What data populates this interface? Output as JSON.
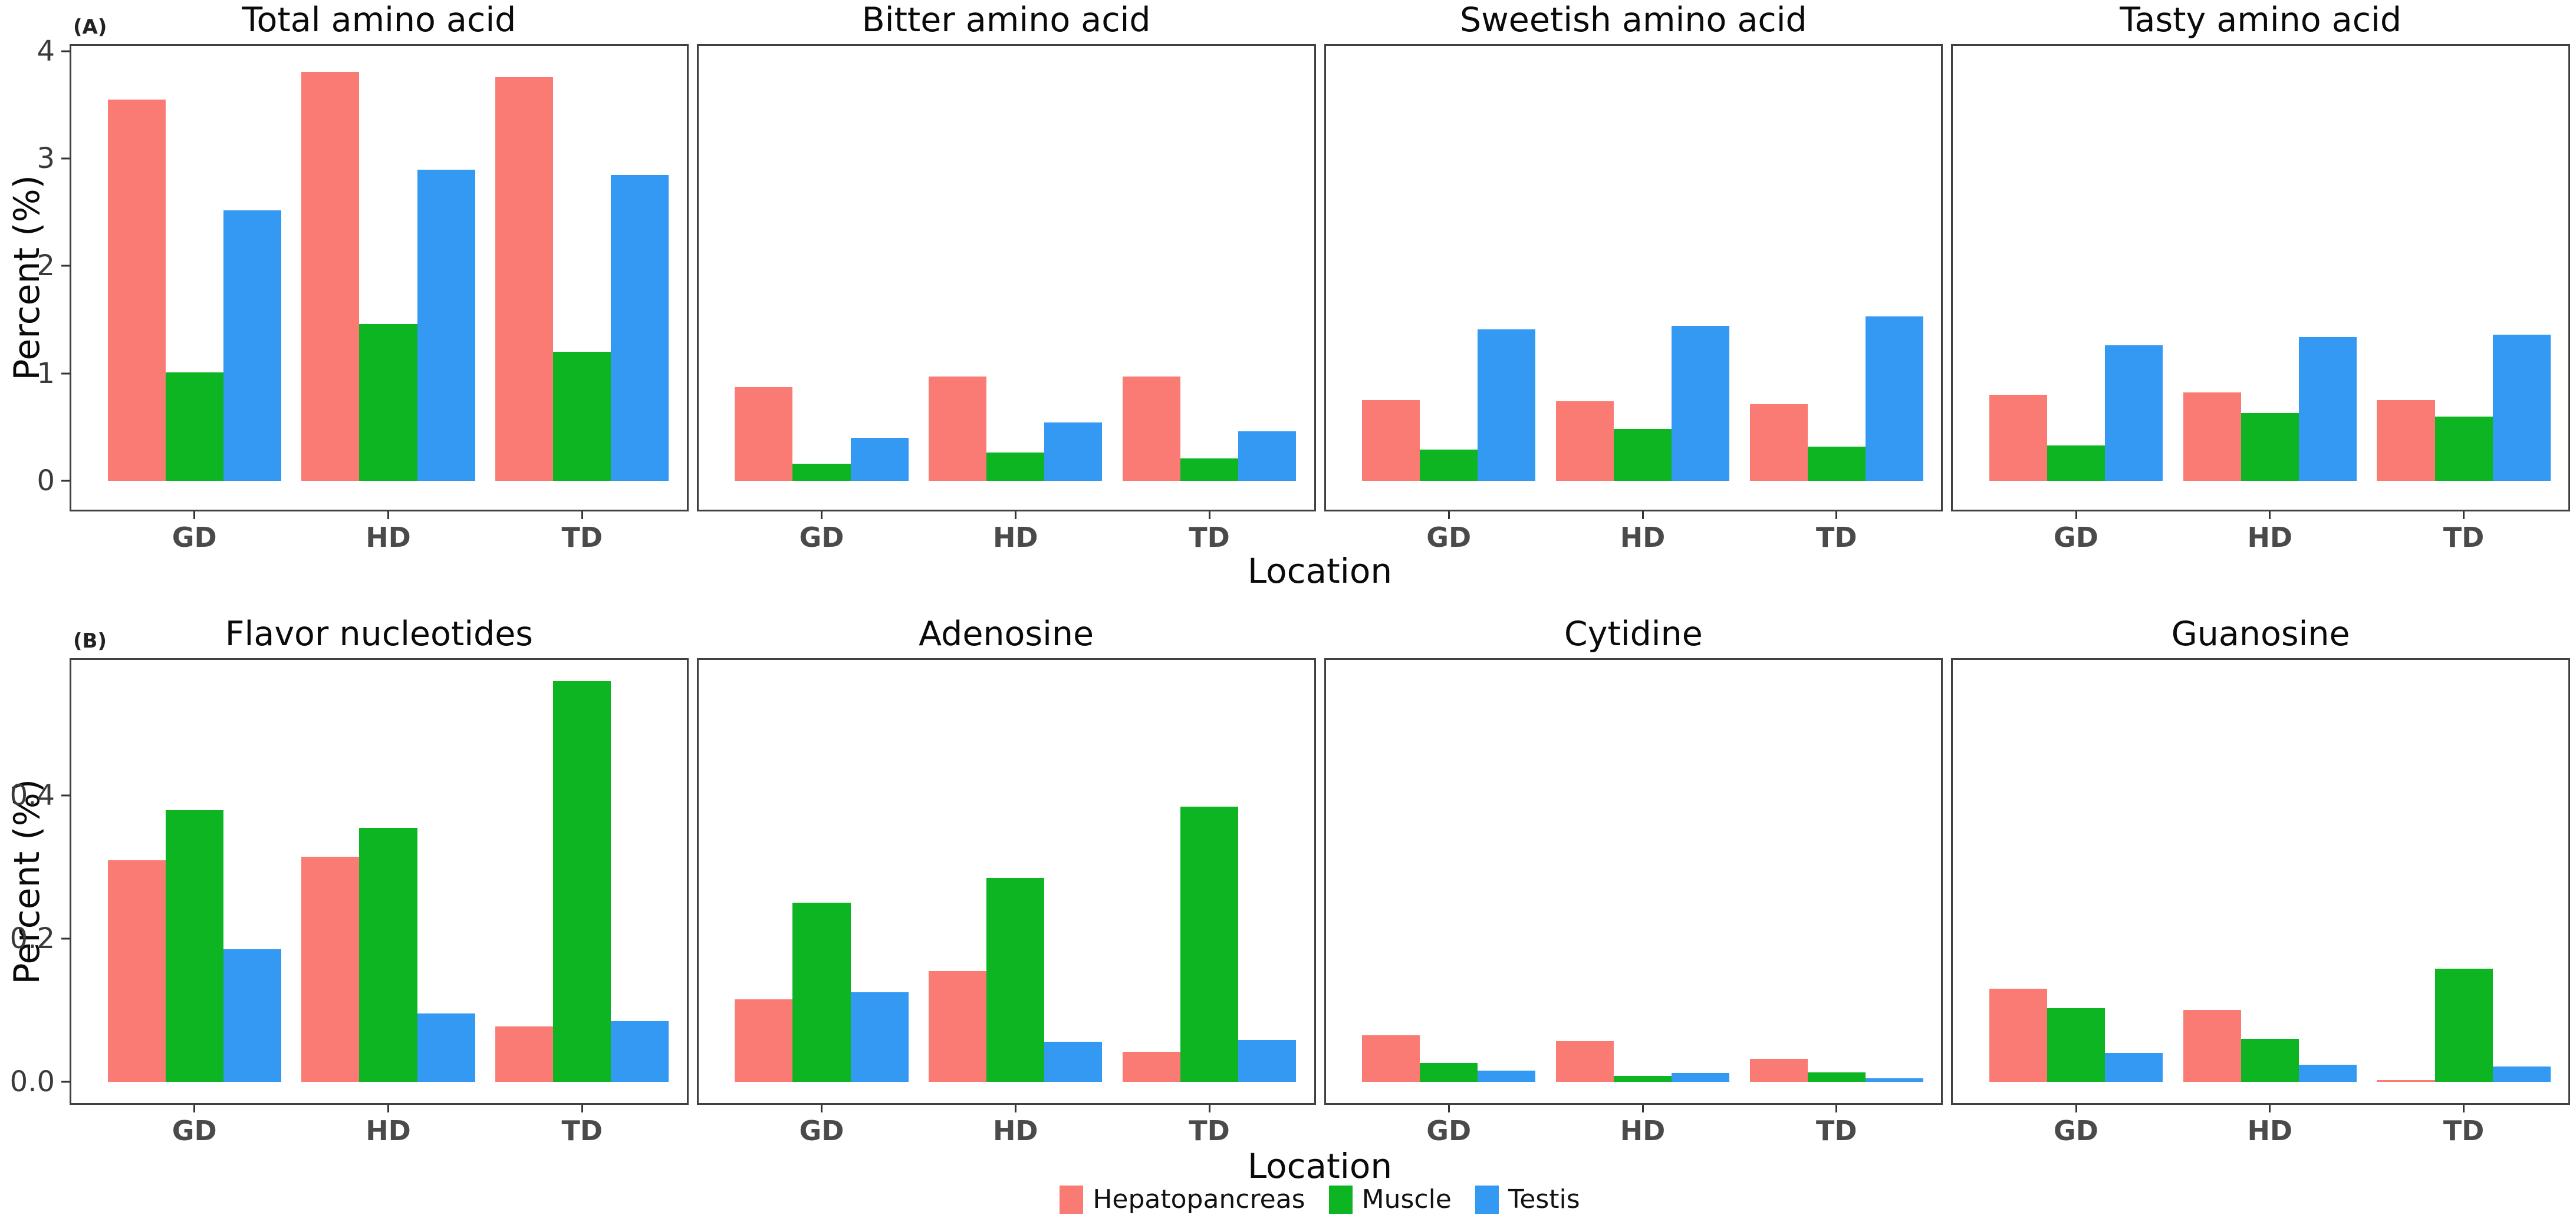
{
  "figure": {
    "panel_a_label": "(A)",
    "panel_b_label": "(B)",
    "ylabel": "Percent (%)",
    "xlabel": "Location",
    "categories": [
      "GD",
      "HD",
      "TD"
    ],
    "legend": [
      {
        "label": "Hepatopancreas",
        "color": "#FA7B73"
      },
      {
        "label": "Muscle",
        "color": "#0DB523"
      },
      {
        "label": "Testis",
        "color": "#3399F3"
      }
    ],
    "frame_color": "#404040"
  },
  "chart_data": [
    {
      "type": "bar",
      "row": "A",
      "title": "Total amino acid",
      "categories": [
        "GD",
        "HD",
        "TD"
      ],
      "series": [
        {
          "name": "Hepatopancreas",
          "values": [
            3.55,
            3.81,
            3.76
          ]
        },
        {
          "name": "Muscle",
          "values": [
            1.01,
            1.46,
            1.2
          ]
        },
        {
          "name": "Testis",
          "values": [
            2.52,
            2.9,
            2.85
          ]
        }
      ],
      "ylim": [
        -0.27,
        4.05
      ],
      "yticks": [
        0,
        1,
        2,
        3,
        4
      ],
      "ytick_labels": [
        "0",
        "1",
        "2",
        "3",
        "4"
      ],
      "show_y_axis": true,
      "grid": false
    },
    {
      "type": "bar",
      "row": "A",
      "title": "Bitter amino acid",
      "categories": [
        "GD",
        "HD",
        "TD"
      ],
      "series": [
        {
          "name": "Hepatopancreas",
          "values": [
            0.87,
            0.97,
            0.97
          ]
        },
        {
          "name": "Muscle",
          "values": [
            0.16,
            0.26,
            0.21
          ]
        },
        {
          "name": "Testis",
          "values": [
            0.4,
            0.54,
            0.46
          ]
        }
      ],
      "ylim": [
        -0.27,
        4.05
      ],
      "yticks": [],
      "ytick_labels": [],
      "show_y_axis": false,
      "grid": false
    },
    {
      "type": "bar",
      "row": "A",
      "title": "Sweetish amino acid",
      "categories": [
        "GD",
        "HD",
        "TD"
      ],
      "series": [
        {
          "name": "Hepatopancreas",
          "values": [
            0.75,
            0.74,
            0.71
          ]
        },
        {
          "name": "Muscle",
          "values": [
            0.29,
            0.48,
            0.32
          ]
        },
        {
          "name": "Testis",
          "values": [
            1.41,
            1.44,
            1.53
          ]
        }
      ],
      "ylim": [
        -0.27,
        4.05
      ],
      "yticks": [],
      "ytick_labels": [],
      "show_y_axis": false,
      "grid": false
    },
    {
      "type": "bar",
      "row": "A",
      "title": "Tasty amino acid",
      "categories": [
        "GD",
        "HD",
        "TD"
      ],
      "series": [
        {
          "name": "Hepatopancreas",
          "values": [
            0.8,
            0.82,
            0.75
          ]
        },
        {
          "name": "Muscle",
          "values": [
            0.33,
            0.63,
            0.6
          ]
        },
        {
          "name": "Testis",
          "values": [
            1.26,
            1.34,
            1.36
          ]
        }
      ],
      "ylim": [
        -0.27,
        4.05
      ],
      "yticks": [],
      "ytick_labels": [],
      "show_y_axis": false,
      "grid": false
    },
    {
      "type": "bar",
      "row": "B",
      "title": "Flavor nucleotides",
      "categories": [
        "GD",
        "HD",
        "TD"
      ],
      "series": [
        {
          "name": "Hepatopancreas",
          "values": [
            0.31,
            0.315,
            0.077
          ]
        },
        {
          "name": "Muscle",
          "values": [
            0.38,
            0.355,
            0.56
          ]
        },
        {
          "name": "Testis",
          "values": [
            0.185,
            0.095,
            0.085
          ]
        }
      ],
      "ylim": [
        -0.03,
        0.59
      ],
      "yticks": [
        0.0,
        0.2,
        0.4
      ],
      "ytick_labels": [
        "0.0",
        "0.2",
        "0.4"
      ],
      "show_y_axis": true,
      "grid": false
    },
    {
      "type": "bar",
      "row": "B",
      "title": "Adenosine",
      "categories": [
        "GD",
        "HD",
        "TD"
      ],
      "series": [
        {
          "name": "Hepatopancreas",
          "values": [
            0.115,
            0.155,
            0.042
          ]
        },
        {
          "name": "Muscle",
          "values": [
            0.25,
            0.285,
            0.385
          ]
        },
        {
          "name": "Testis",
          "values": [
            0.125,
            0.056,
            0.058
          ]
        }
      ],
      "ylim": [
        -0.03,
        0.59
      ],
      "yticks": [],
      "ytick_labels": [],
      "show_y_axis": false,
      "grid": false
    },
    {
      "type": "bar",
      "row": "B",
      "title": "Cytidine",
      "categories": [
        "GD",
        "HD",
        "TD"
      ],
      "series": [
        {
          "name": "Hepatopancreas",
          "values": [
            0.065,
            0.057,
            0.032
          ]
        },
        {
          "name": "Muscle",
          "values": [
            0.026,
            0.008,
            0.013
          ]
        },
        {
          "name": "Testis",
          "values": [
            0.015,
            0.012,
            0.005
          ]
        }
      ],
      "ylim": [
        -0.03,
        0.59
      ],
      "yticks": [],
      "ytick_labels": [],
      "show_y_axis": false,
      "grid": false
    },
    {
      "type": "bar",
      "row": "B",
      "title": "Guanosine",
      "categories": [
        "GD",
        "HD",
        "TD"
      ],
      "series": [
        {
          "name": "Hepatopancreas",
          "values": [
            0.13,
            0.1,
            0.002
          ]
        },
        {
          "name": "Muscle",
          "values": [
            0.103,
            0.06,
            0.158
          ]
        },
        {
          "name": "Testis",
          "values": [
            0.04,
            0.024,
            0.021
          ]
        }
      ],
      "ylim": [
        -0.03,
        0.59
      ],
      "yticks": [],
      "ytick_labels": [],
      "show_y_axis": false,
      "grid": false
    }
  ]
}
